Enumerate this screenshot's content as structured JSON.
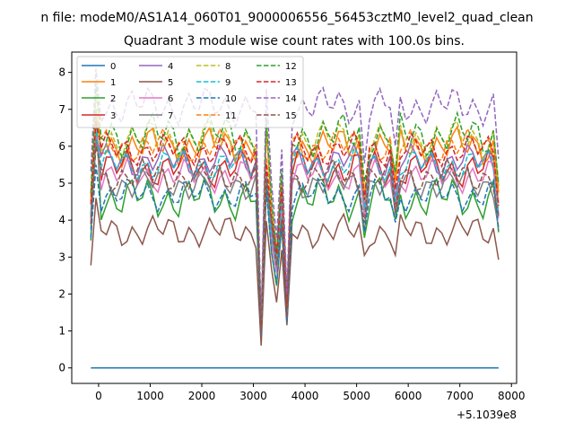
{
  "figure": {
    "suptitle": "n file: modeM0/AS1A14_060T01_9000006556_56453cztM0_level2_quad_clean"
  },
  "chart_data": {
    "type": "line",
    "title": "Quadrant 3 module wise count rates with 100.0s bins.",
    "xlabel": "",
    "ylabel": "",
    "x_offset_label": "+5.1039e8",
    "xlim": [
      -520,
      8100
    ],
    "ylim": [
      -0.42,
      8.55
    ],
    "x_ticks": [
      0,
      1000,
      2000,
      3000,
      4000,
      5000,
      6000,
      7000,
      8000
    ],
    "x_tick_labels": [
      "0",
      "1000",
      "2000",
      "3000",
      "4000",
      "5000",
      "6000",
      "7000",
      "8000"
    ],
    "y_ticks": [
      0,
      1,
      2,
      3,
      4,
      5,
      6,
      7,
      8
    ],
    "y_tick_labels": [
      "0",
      "1",
      "2",
      "3",
      "4",
      "5",
      "6",
      "7",
      "8"
    ],
    "grid": false,
    "legend": {
      "placement": "upper-left",
      "columns": 4
    },
    "x_range": [
      -150,
      7750
    ],
    "dips": [
      {
        "x": 2800,
        "ratio": 0.75
      },
      {
        "x": 3150,
        "ratio": 0.17
      },
      {
        "x": 3350,
        "ratio": 0.72
      },
      {
        "x": 3450,
        "ratio": 0.5
      },
      {
        "x": 3550,
        "ratio": 0.8
      },
      {
        "x": 3650,
        "ratio": 0.28
      },
      {
        "x": 5150,
        "ratio": 0.8
      },
      {
        "x": 5750,
        "ratio": 0.8
      },
      {
        "x": 7750,
        "ratio": 0.8
      }
    ],
    "series": [
      {
        "name": "0",
        "color": "#1f77b4",
        "dash": "solid",
        "base": 0.0,
        "amp": 0.0,
        "phase": 0.0,
        "peak": 0.0
      },
      {
        "name": "1",
        "color": "#ff7f0e",
        "dash": "solid",
        "base": 6.0,
        "amp": 0.35,
        "phase": 0.7,
        "peak": 7.0
      },
      {
        "name": "2",
        "color": "#2ca02c",
        "dash": "solid",
        "base": 4.6,
        "amp": 0.4,
        "phase": 1.3,
        "peak": 7.0
      },
      {
        "name": "3",
        "color": "#d62728",
        "dash": "solid",
        "base": 5.4,
        "amp": 0.35,
        "phase": 2.1,
        "peak": 6.5
      },
      {
        "name": "4",
        "color": "#9467bd",
        "dash": "solid",
        "base": 5.6,
        "amp": 0.3,
        "phase": 2.8,
        "peak": 6.3
      },
      {
        "name": "5",
        "color": "#8c564b",
        "dash": "solid",
        "base": 3.7,
        "amp": 0.3,
        "phase": 0.3,
        "peak": 4.6
      },
      {
        "name": "6",
        "color": "#e377c2",
        "dash": "solid",
        "base": 5.2,
        "amp": 0.3,
        "phase": 1.9,
        "peak": 6.5
      },
      {
        "name": "7",
        "color": "#7f7f7f",
        "dash": "solid",
        "base": 5.0,
        "amp": 0.3,
        "phase": 3.4,
        "peak": 6.2
      },
      {
        "name": "8",
        "color": "#bcbd22",
        "dash": "dashed",
        "base": 6.2,
        "amp": 0.35,
        "phase": 0.9,
        "peak": 7.5
      },
      {
        "name": "9",
        "color": "#17becf",
        "dash": "dashed",
        "base": 5.5,
        "amp": 0.3,
        "phase": 2.4,
        "peak": 6.5
      },
      {
        "name": "10",
        "color": "#1f77b4",
        "dash": "dashed",
        "base": 4.7,
        "amp": 0.3,
        "phase": 1.6,
        "peak": 5.5
      },
      {
        "name": "11",
        "color": "#ff7f0e",
        "dash": "dashed",
        "base": 6.0,
        "amp": 0.3,
        "phase": 3.0,
        "peak": 6.9
      },
      {
        "name": "12",
        "color": "#2ca02c",
        "dash": "dashed",
        "base": 6.3,
        "amp": 0.4,
        "phase": 0.5,
        "peak": 7.7
      },
      {
        "name": "13",
        "color": "#d62728",
        "dash": "dashed",
        "base": 5.9,
        "amp": 0.3,
        "phase": 2.6,
        "peak": 6.7
      },
      {
        "name": "14",
        "color": "#9467bd",
        "dash": "dashed",
        "base": 7.1,
        "amp": 0.35,
        "phase": 1.1,
        "peak": 8.1
      },
      {
        "name": "15",
        "color": "#8c564b",
        "dash": "dashed",
        "base": 5.2,
        "amp": 0.3,
        "phase": 3.7,
        "peak": 6.0
      }
    ]
  }
}
